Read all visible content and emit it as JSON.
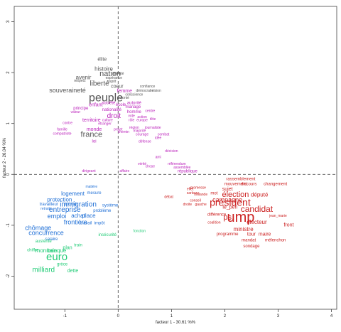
{
  "chart_data": {
    "type": "scatter",
    "subtype": "correspondence-analysis word map",
    "title": "",
    "xlabel": "facteur 1 - 30.61 %%",
    "ylabel": "facteur 2 - 26.04 %%",
    "xlim": [
      -1.95,
      4.1
    ],
    "ylim": [
      -2.65,
      3.3
    ],
    "xticks": [
      -1,
      0,
      1,
      2,
      3,
      4
    ],
    "yticks": [
      -2,
      -1,
      0,
      1,
      2,
      3
    ],
    "reference_lines": {
      "x": 0,
      "y": 0,
      "style": "dashed"
    },
    "grid": false,
    "colors": {
      "identity": "#555555",
      "values": "#bb22bb",
      "economy": "#1f6fd6",
      "crisis": "#22cc77",
      "politics": "#cc2222"
    },
    "points": [
      {
        "label": "élite",
        "x": -0.3,
        "y": 2.25,
        "group": "identity",
        "size": 7
      },
      {
        "label": "nation",
        "x": -0.15,
        "y": 1.97,
        "group": "identity",
        "size": 11
      },
      {
        "label": "histoire",
        "x": -0.27,
        "y": 2.07,
        "group": "identity",
        "size": 8
      },
      {
        "label": "identité",
        "x": 0.0,
        "y": 1.97,
        "group": "identity",
        "size": 5
      },
      {
        "label": "avenir",
        "x": -0.65,
        "y": 1.9,
        "group": "identity",
        "size": 8
      },
      {
        "label": "respect",
        "x": -0.72,
        "y": 1.83,
        "group": "identity",
        "size": 5
      },
      {
        "label": "espérance",
        "x": -0.08,
        "y": 1.89,
        "group": "identity",
        "size": 5
      },
      {
        "label": "liberté",
        "x": -0.35,
        "y": 1.78,
        "group": "identity",
        "size": 10
      },
      {
        "label": "esprit",
        "x": -0.12,
        "y": 1.82,
        "group": "identity",
        "size": 5
      },
      {
        "label": "souveraineté",
        "x": -0.95,
        "y": 1.65,
        "group": "identity",
        "size": 9
      },
      {
        "label": "coeur",
        "x": -0.02,
        "y": 1.72,
        "group": "identity",
        "size": 7
      },
      {
        "label": "confiance",
        "x": 0.55,
        "y": 1.72,
        "group": "identity",
        "size": 5
      },
      {
        "label": "démocratie",
        "x": 0.5,
        "y": 1.64,
        "group": "identity",
        "size": 5
      },
      {
        "label": "vision",
        "x": 0.72,
        "y": 1.64,
        "group": "identity",
        "size": 5
      },
      {
        "label": "conscience",
        "x": 0.3,
        "y": 1.56,
        "group": "identity",
        "size": 5
      },
      {
        "label": "peuple",
        "x": -0.23,
        "y": 1.5,
        "group": "identity",
        "size": 16
      },
      {
        "label": "volonté",
        "x": 0.1,
        "y": 1.5,
        "group": "identity",
        "size": 5
      },
      {
        "label": "france",
        "x": -0.5,
        "y": 0.78,
        "group": "identity",
        "size": 11
      },
      {
        "label": "femme",
        "x": 0.12,
        "y": 1.63,
        "group": "values",
        "size": 7
      },
      {
        "label": "autorité",
        "x": 0.3,
        "y": 1.39,
        "group": "values",
        "size": 6
      },
      {
        "label": "enfant",
        "x": -0.42,
        "y": 1.36,
        "group": "values",
        "size": 7
      },
      {
        "label": "société",
        "x": -0.18,
        "y": 1.39,
        "group": "values",
        "size": 6
      },
      {
        "label": "école",
        "x": 0.05,
        "y": 1.36,
        "group": "values",
        "size": 6
      },
      {
        "label": "mariage",
        "x": 0.28,
        "y": 1.32,
        "group": "values",
        "size": 6
      },
      {
        "label": "principe",
        "x": -0.7,
        "y": 1.29,
        "group": "values",
        "size": 6
      },
      {
        "label": "valeur",
        "x": -0.8,
        "y": 1.22,
        "group": "values",
        "size": 5
      },
      {
        "label": "nationalité",
        "x": -0.12,
        "y": 1.26,
        "group": "values",
        "size": 6
      },
      {
        "label": "homme",
        "x": 0.3,
        "y": 1.22,
        "group": "values",
        "size": 6
      },
      {
        "label": "centre",
        "x": 0.6,
        "y": 1.24,
        "group": "values",
        "size": 5
      },
      {
        "label": "droit",
        "x": -0.08,
        "y": 1.14,
        "group": "values",
        "size": 10
      },
      {
        "label": "vote",
        "x": 0.25,
        "y": 1.14,
        "group": "values",
        "size": 5
      },
      {
        "label": "action",
        "x": 0.45,
        "y": 1.12,
        "group": "values",
        "size": 5
      },
      {
        "label": "tête",
        "x": 0.65,
        "y": 1.08,
        "group": "values",
        "size": 5
      },
      {
        "label": "territoire",
        "x": -0.5,
        "y": 1.06,
        "group": "values",
        "size": 7
      },
      {
        "label": "culture",
        "x": -0.2,
        "y": 1.06,
        "group": "values",
        "size": 5
      },
      {
        "label": "rôle",
        "x": 0.25,
        "y": 1.06,
        "group": "values",
        "size": 5
      },
      {
        "label": "europe",
        "x": 0.45,
        "y": 1.06,
        "group": "values",
        "size": 5
      },
      {
        "label": "contre",
        "x": -0.95,
        "y": 1.0,
        "group": "values",
        "size": 5
      },
      {
        "label": "étranger",
        "x": -0.25,
        "y": 0.99,
        "group": "values",
        "size": 5
      },
      {
        "label": "région",
        "x": 0.3,
        "y": 0.91,
        "group": "values",
        "size": 5
      },
      {
        "label": "journaliste",
        "x": 0.65,
        "y": 0.91,
        "group": "values",
        "size": 5
      },
      {
        "label": "famille",
        "x": -1.05,
        "y": 0.88,
        "group": "values",
        "size": 5
      },
      {
        "label": "monde",
        "x": -0.45,
        "y": 0.88,
        "group": "values",
        "size": 7
      },
      {
        "label": "projet",
        "x": 0.0,
        "y": 0.88,
        "group": "values",
        "size": 5
      },
      {
        "label": "majorité",
        "x": 0.4,
        "y": 0.85,
        "group": "values",
        "size": 5
      },
      {
        "label": "courage",
        "x": 0.45,
        "y": 0.78,
        "group": "values",
        "size": 5
      },
      {
        "label": "loi",
        "x": -0.45,
        "y": 0.64,
        "group": "values",
        "size": 6
      },
      {
        "label": "chemin",
        "x": 0.1,
        "y": 0.83,
        "group": "values",
        "size": 5
      },
      {
        "label": "combat",
        "x": 0.85,
        "y": 0.78,
        "group": "values",
        "size": 5
      },
      {
        "label": "compatriote",
        "x": -1.05,
        "y": 0.79,
        "group": "values",
        "size": 5
      },
      {
        "label": "défense",
        "x": 0.5,
        "y": 0.64,
        "group": "values",
        "size": 5
      },
      {
        "label": "idée",
        "x": 0.75,
        "y": 0.71,
        "group": "values",
        "size": 5
      },
      {
        "label": "république",
        "x": 1.3,
        "y": 0.05,
        "group": "values",
        "size": 6
      },
      {
        "label": "ami",
        "x": 0.75,
        "y": 0.33,
        "group": "values",
        "size": 5
      },
      {
        "label": "décision",
        "x": 1.0,
        "y": 0.45,
        "group": "values",
        "size": 5
      },
      {
        "label": "vérité",
        "x": 0.45,
        "y": 0.2,
        "group": "values",
        "size": 5
      },
      {
        "label": "référendum",
        "x": 1.1,
        "y": 0.2,
        "group": "values",
        "size": 5
      },
      {
        "label": "assemblée",
        "x": 1.2,
        "y": 0.13,
        "group": "values",
        "size": 5
      },
      {
        "label": "chose",
        "x": 0.6,
        "y": 0.15,
        "group": "values",
        "size": 5
      },
      {
        "label": "affaire",
        "x": 0.12,
        "y": 0.06,
        "group": "values",
        "size": 5
      },
      {
        "label": "dirigeant",
        "x": -0.55,
        "y": 0.06,
        "group": "values",
        "size": 5
      },
      {
        "label": "emploi",
        "x": -1.15,
        "y": -0.82,
        "group": "economy",
        "size": 9
      },
      {
        "label": "entreprise",
        "x": -1.0,
        "y": -0.7,
        "group": "economy",
        "size": 10
      },
      {
        "label": "immigration",
        "x": -0.75,
        "y": -0.6,
        "group": "economy",
        "size": 10
      },
      {
        "label": "achat",
        "x": -0.75,
        "y": -0.81,
        "group": "economy",
        "size": 8
      },
      {
        "label": "place",
        "x": -0.55,
        "y": -0.81,
        "group": "economy",
        "size": 8
      },
      {
        "label": "frontière",
        "x": -0.8,
        "y": -0.94,
        "group": "economy",
        "size": 9
      },
      {
        "label": "protection",
        "x": -1.1,
        "y": -0.5,
        "group": "economy",
        "size": 8
      },
      {
        "label": "logement",
        "x": -0.85,
        "y": -0.38,
        "group": "economy",
        "size": 8
      },
      {
        "label": "mesure",
        "x": -0.45,
        "y": -0.37,
        "group": "economy",
        "size": 6
      },
      {
        "label": "travailleur",
        "x": -1.3,
        "y": -0.6,
        "group": "economy",
        "size": 6
      },
      {
        "label": "priorité",
        "x": -0.9,
        "y": -0.6,
        "group": "economy",
        "size": 6
      },
      {
        "label": "problème",
        "x": -0.3,
        "y": -0.72,
        "group": "economy",
        "size": 6
      },
      {
        "label": "système",
        "x": -0.15,
        "y": -0.62,
        "group": "economy",
        "size": 6
      },
      {
        "label": "chômage",
        "x": -1.5,
        "y": -1.05,
        "group": "economy",
        "size": 9
      },
      {
        "label": "concurrence",
        "x": -1.35,
        "y": -1.15,
        "group": "economy",
        "size": 9
      },
      {
        "label": "salaire",
        "x": -1.25,
        "y": -1.28,
        "group": "economy",
        "size": 6
      },
      {
        "label": "matière",
        "x": -0.5,
        "y": -0.25,
        "group": "economy",
        "size": 5
      },
      {
        "label": "retraite",
        "x": -1.35,
        "y": -0.68,
        "group": "economy",
        "size": 5
      },
      {
        "label": "travail",
        "x": -0.6,
        "y": -0.97,
        "group": "economy",
        "size": 6
      },
      {
        "label": "impôt",
        "x": -0.35,
        "y": -0.97,
        "group": "economy",
        "size": 6
      },
      {
        "label": "euro",
        "x": -1.15,
        "y": -1.62,
        "group": "crisis",
        "size": 15
      },
      {
        "label": "milliard",
        "x": -1.4,
        "y": -1.88,
        "group": "crisis",
        "size": 10
      },
      {
        "label": "dette",
        "x": -0.85,
        "y": -1.9,
        "group": "crisis",
        "size": 7
      },
      {
        "label": "monnaie",
        "x": -1.35,
        "y": -1.5,
        "group": "crisis",
        "size": 8
      },
      {
        "label": "banque",
        "x": -1.15,
        "y": -1.5,
        "group": "crisis",
        "size": 8
      },
      {
        "label": "chiffre",
        "x": -1.6,
        "y": -1.5,
        "group": "crisis",
        "size": 6
      },
      {
        "label": "austérité",
        "x": -1.4,
        "y": -1.32,
        "group": "crisis",
        "size": 6
      },
      {
        "label": "plan",
        "x": -0.95,
        "y": -1.45,
        "group": "crisis",
        "size": 7
      },
      {
        "label": "train",
        "x": -0.75,
        "y": -1.4,
        "group": "crisis",
        "size": 6
      },
      {
        "label": "grèce",
        "x": -1.05,
        "y": -1.78,
        "group": "crisis",
        "size": 6
      },
      {
        "label": "fonction",
        "x": 0.4,
        "y": -1.12,
        "group": "crisis",
        "size": 5
      },
      {
        "label": "insécurité",
        "x": -0.2,
        "y": -1.2,
        "group": "crisis",
        "size": 6
      },
      {
        "label": "président",
        "x": 2.1,
        "y": -0.55,
        "group": "politics",
        "size": 14
      },
      {
        "label": "ump",
        "x": 2.3,
        "y": -0.85,
        "group": "politics",
        "size": 20
      },
      {
        "label": "élection",
        "x": 2.2,
        "y": -0.4,
        "group": "politics",
        "size": 11
      },
      {
        "label": "candidat",
        "x": 2.6,
        "y": -0.68,
        "group": "politics",
        "size": 12
      },
      {
        "label": "campagne",
        "x": 2.05,
        "y": -0.5,
        "group": "politics",
        "size": 9
      },
      {
        "label": "ps",
        "x": 2.05,
        "y": -0.85,
        "group": "politics",
        "size": 11
      },
      {
        "label": "électeur",
        "x": 2.6,
        "y": -0.94,
        "group": "politics",
        "size": 8
      },
      {
        "label": "mot",
        "x": 1.8,
        "y": -0.38,
        "group": "politics",
        "size": 6
      },
      {
        "label": "député",
        "x": 2.65,
        "y": -0.4,
        "group": "politics",
        "size": 8
      },
      {
        "label": "discours",
        "x": 2.45,
        "y": -0.2,
        "group": "politics",
        "size": 6
      },
      {
        "label": "changement",
        "x": 2.95,
        "y": -0.2,
        "group": "politics",
        "size": 6
      },
      {
        "label": "rassemblement",
        "x": 2.3,
        "y": -0.1,
        "group": "politics",
        "size": 6
      },
      {
        "label": "mouvement",
        "x": 2.2,
        "y": -0.2,
        "group": "politics",
        "size": 6
      },
      {
        "label": "sujet",
        "x": 2.05,
        "y": -0.3,
        "group": "politics",
        "size": 7
      },
      {
        "label": "promesse",
        "x": 1.5,
        "y": -0.27,
        "group": "politics",
        "size": 5
      },
      {
        "label": "hollande",
        "x": 1.55,
        "y": -0.4,
        "group": "politics",
        "size": 5
      },
      {
        "label": "sarkozy",
        "x": 1.4,
        "y": -0.37,
        "group": "politics",
        "size": 5
      },
      {
        "label": "effet",
        "x": 1.35,
        "y": -0.3,
        "group": "politics",
        "size": 5
      },
      {
        "label": "conseil",
        "x": 1.45,
        "y": -0.52,
        "group": "politics",
        "size": 5
      },
      {
        "label": "le_pen",
        "x": 2.1,
        "y": -0.65,
        "group": "politics",
        "size": 7
      },
      {
        "label": "ministre",
        "x": 2.35,
        "y": -1.08,
        "group": "politics",
        "size": 8
      },
      {
        "label": "tour",
        "x": 2.5,
        "y": -1.18,
        "group": "politics",
        "size": 7
      },
      {
        "label": "maire",
        "x": 2.75,
        "y": -1.18,
        "group": "politics",
        "size": 7
      },
      {
        "label": "front",
        "x": 3.2,
        "y": -1.0,
        "group": "politics",
        "size": 7
      },
      {
        "label": "jean_marie",
        "x": 3.0,
        "y": -0.82,
        "group": "politics",
        "size": 5
      },
      {
        "label": "différence",
        "x": 1.85,
        "y": -0.8,
        "group": "politics",
        "size": 6
      },
      {
        "label": "programme",
        "x": 2.05,
        "y": -1.18,
        "group": "politics",
        "size": 6
      },
      {
        "label": "mandat",
        "x": 2.45,
        "y": -1.3,
        "group": "politics",
        "size": 6
      },
      {
        "label": "mélenchon",
        "x": 2.95,
        "y": -1.3,
        "group": "politics",
        "size": 6
      },
      {
        "label": "sondage",
        "x": 2.5,
        "y": -1.42,
        "group": "politics",
        "size": 6
      },
      {
        "label": "débat",
        "x": 0.95,
        "y": -0.45,
        "group": "politics",
        "size": 5
      },
      {
        "label": "droite",
        "x": 1.3,
        "y": -0.6,
        "group": "politics",
        "size": 5
      },
      {
        "label": "gauche",
        "x": 1.55,
        "y": -0.6,
        "group": "politics",
        "size": 5
      },
      {
        "label": "coalition",
        "x": 1.8,
        "y": -0.95,
        "group": "politics",
        "size": 5
      }
    ]
  }
}
